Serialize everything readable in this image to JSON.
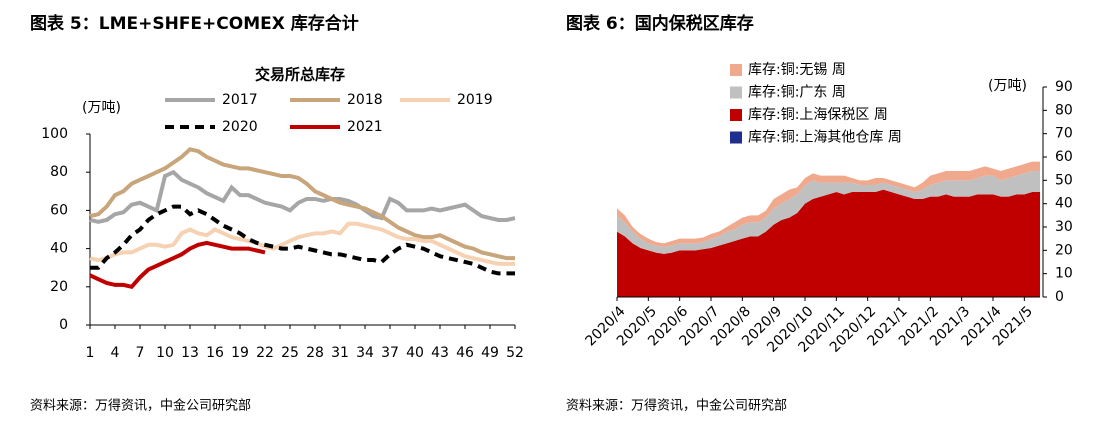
{
  "chart_data": [
    {
      "type": "line",
      "figure_title": "图表 5：LME+SHFE+COMEX 库存合计",
      "title": "交易所总库存",
      "y_label": "(万吨)",
      "source": "资料来源：万得资讯，中金公司研究部",
      "x": [
        1,
        2,
        3,
        4,
        5,
        6,
        7,
        8,
        9,
        10,
        11,
        12,
        13,
        14,
        15,
        16,
        17,
        18,
        19,
        20,
        21,
        22,
        23,
        24,
        25,
        26,
        27,
        28,
        29,
        30,
        31,
        32,
        33,
        34,
        35,
        36,
        37,
        38,
        39,
        40,
        41,
        42,
        43,
        44,
        45,
        46,
        47,
        48,
        49,
        50,
        51,
        52
      ],
      "xlim": [
        1,
        52
      ],
      "xticks": [
        1,
        4,
        7,
        10,
        13,
        16,
        19,
        22,
        25,
        28,
        31,
        34,
        37,
        40,
        43,
        46,
        49,
        52
      ],
      "ylim": [
        0,
        100
      ],
      "yticks": [
        0,
        20,
        40,
        60,
        80,
        100
      ],
      "series": [
        {
          "name": "2017",
          "color": "#a6a6a6",
          "values": [
            55,
            54,
            55,
            58,
            59,
            63,
            64,
            62,
            60,
            78,
            80,
            76,
            74,
            72,
            69,
            67,
            65,
            72,
            68,
            68,
            66,
            64,
            63,
            62,
            60,
            64,
            66,
            66,
            65,
            66,
            66,
            65,
            63,
            60,
            57,
            56,
            66,
            64,
            60,
            60,
            60,
            61,
            60,
            61,
            62,
            63,
            60,
            57,
            56,
            55,
            55,
            56
          ]
        },
        {
          "name": "2018",
          "color": "#c8a57a",
          "values": [
            57,
            58,
            62,
            68,
            70,
            74,
            76,
            78,
            80,
            82,
            85,
            88,
            92,
            91,
            88,
            86,
            84,
            83,
            82,
            82,
            81,
            80,
            79,
            78,
            78,
            77,
            74,
            70,
            68,
            66,
            64,
            63,
            62,
            61,
            59,
            57,
            54,
            51,
            49,
            47,
            46,
            46,
            47,
            45,
            43,
            41,
            40,
            38,
            37,
            36,
            35,
            35
          ]
        },
        {
          "name": "2019",
          "color": "#f6d2b2",
          "values": [
            35,
            34,
            35,
            37,
            38,
            38,
            40,
            42,
            42,
            41,
            42,
            48,
            50,
            48,
            47,
            50,
            48,
            46,
            45,
            44,
            43,
            41,
            40,
            42,
            44,
            46,
            47,
            48,
            48,
            49,
            48,
            53,
            53,
            52,
            51,
            50,
            48,
            46,
            45,
            45,
            44,
            44,
            42,
            40,
            38,
            36,
            35,
            34,
            33,
            32,
            32,
            32
          ]
        },
        {
          "name": "2020",
          "color": "#000000",
          "dashed": true,
          "values": [
            30,
            30,
            35,
            38,
            42,
            47,
            50,
            55,
            58,
            60,
            62,
            62,
            58,
            60,
            58,
            55,
            52,
            50,
            48,
            45,
            43,
            42,
            41,
            40,
            40,
            41,
            40,
            39,
            38,
            37,
            37,
            36,
            35,
            34,
            34,
            33,
            37,
            40,
            42,
            41,
            40,
            38,
            36,
            35,
            34,
            33,
            32,
            30,
            28,
            27,
            27,
            27
          ]
        },
        {
          "name": "2021",
          "color": "#c00000",
          "values": [
            26,
            24,
            22,
            21,
            21,
            20,
            25,
            29,
            31,
            33,
            35,
            37,
            40,
            42,
            43,
            42,
            41,
            40,
            40,
            40,
            39,
            38,
            null,
            null,
            null,
            null,
            null,
            null,
            null,
            null,
            null,
            null,
            null,
            null,
            null,
            null,
            null,
            null,
            null,
            null,
            null,
            null,
            null,
            null,
            null,
            null,
            null,
            null,
            null,
            null,
            null,
            null
          ]
        }
      ]
    },
    {
      "type": "stacked_area",
      "figure_title": "图表 6：国内保税区库存",
      "y_label": "(万吨)",
      "source": "资料来源：万得资讯，中金公司研究部",
      "categories": [
        "2020/4",
        null,
        null,
        null,
        "2020/5",
        null,
        null,
        null,
        "2020/6",
        null,
        null,
        null,
        "2020/7",
        null,
        null,
        null,
        "2020/8",
        null,
        null,
        null,
        "2020/9",
        null,
        null,
        null,
        "2020/10",
        null,
        null,
        null,
        "2020/11",
        null,
        null,
        null,
        "2020/12",
        null,
        null,
        null,
        "2021/1",
        null,
        null,
        null,
        "2021/2",
        null,
        null,
        null,
        "2021/3",
        null,
        null,
        null,
        "2021/4",
        null,
        null,
        null,
        "2021/5",
        null,
        null
      ],
      "y_axis_side": "right",
      "ylim": [
        0,
        90
      ],
      "yticks": [
        0,
        10,
        20,
        30,
        40,
        50,
        60,
        70,
        80,
        90
      ],
      "series": [
        {
          "name": "库存:铜:无锡 周",
          "color": "#f0a98c",
          "values": [
            3,
            3,
            2,
            2,
            2,
            1.5,
            1.5,
            2,
            2,
            2,
            2,
            2,
            2,
            2,
            2,
            3,
            3,
            3,
            3,
            3,
            4,
            4,
            4,
            3,
            3,
            3,
            3,
            3,
            3,
            3,
            2,
            2,
            2,
            3,
            2,
            2,
            2,
            2,
            2,
            3,
            4,
            4,
            4,
            4,
            4,
            4,
            4,
            4,
            3,
            4,
            4,
            4,
            4,
            4,
            4
          ]
        },
        {
          "name": "库存:铜:广东 周",
          "color": "#c0c0c0",
          "values": [
            7,
            6,
            5,
            4,
            3,
            3,
            3,
            3,
            3,
            3,
            3,
            3,
            4,
            4,
            5,
            5,
            6,
            6,
            6,
            6,
            7,
            7,
            8,
            8,
            8,
            8,
            6,
            5,
            4,
            5,
            4,
            3,
            3,
            3,
            3,
            3,
            3,
            3,
            3,
            4,
            5,
            6,
            6,
            7,
            7,
            7,
            7,
            8,
            8,
            7,
            8,
            8,
            9,
            9,
            9
          ]
        },
        {
          "name": "库存:铜:上海保税区 周",
          "color": "#c00000",
          "values": [
            28,
            26,
            23,
            21,
            20,
            19,
            18.5,
            19,
            20,
            20,
            20,
            20.5,
            21,
            22,
            23,
            24,
            25,
            26,
            26,
            28,
            31,
            33,
            34,
            36,
            40,
            42,
            43,
            44,
            45,
            44,
            45,
            45,
            45,
            45,
            46,
            45,
            44,
            43,
            42,
            42,
            43,
            43,
            44,
            43,
            43,
            43,
            44,
            44,
            44,
            43,
            43,
            44,
            44,
            45,
            45
          ]
        },
        {
          "name": "库存:铜:上海其他仓库 周",
          "color": "#1f2f8f",
          "values": [
            0,
            0,
            0,
            0,
            0,
            0,
            0,
            0,
            0,
            0,
            0,
            0,
            0,
            0,
            0,
            0,
            0,
            0,
            0,
            0,
            0,
            0,
            0,
            0,
            0,
            0,
            0,
            0,
            0,
            0,
            0,
            0,
            0,
            0,
            0,
            0,
            0,
            0,
            0,
            0,
            0,
            0,
            0,
            0,
            0,
            0,
            0,
            0,
            0,
            0,
            0,
            0,
            0,
            0,
            0
          ]
        }
      ]
    }
  ]
}
